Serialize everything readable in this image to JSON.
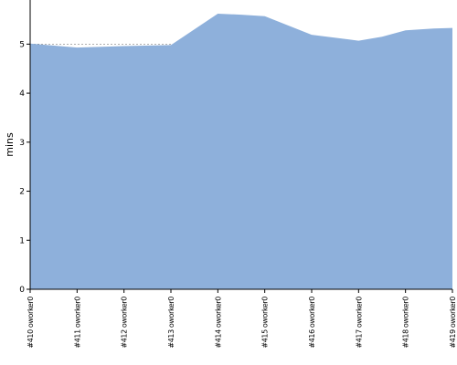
{
  "chart_data": {
    "type": "area",
    "ylabel": "mins",
    "ylim": [
      0,
      5.9
    ],
    "yticks": [
      0,
      1,
      2,
      3,
      4,
      5
    ],
    "grid": true,
    "fill_color": "#8eb0db",
    "grid_color": "#7f7f7f",
    "axis_color": "#000000",
    "categories": [
      "#410 oworker0",
      "#411 oworker0",
      "#412 oworker0",
      "#413 oworker0",
      "#414 oworker0",
      "#415 oworker0",
      "#416 oworker0",
      "#417 oworker0",
      "#418 oworker0",
      "#419 oworker0"
    ],
    "values": [
      5.01,
      4.93,
      4.96,
      4.98,
      5.62,
      5.57,
      5.19,
      5.07,
      5.28,
      5.33
    ],
    "x": [
      410,
      411,
      412,
      413,
      414,
      415,
      416,
      417,
      418,
      419
    ],
    "series_x": [
      410,
      411,
      412,
      413,
      414,
      414.5,
      415,
      416,
      417,
      417.5,
      418,
      418.6,
      419
    ],
    "series_values": [
      5.01,
      4.93,
      4.96,
      4.98,
      5.62,
      5.6,
      5.57,
      5.19,
      5.07,
      5.15,
      5.28,
      5.32,
      5.33
    ]
  }
}
